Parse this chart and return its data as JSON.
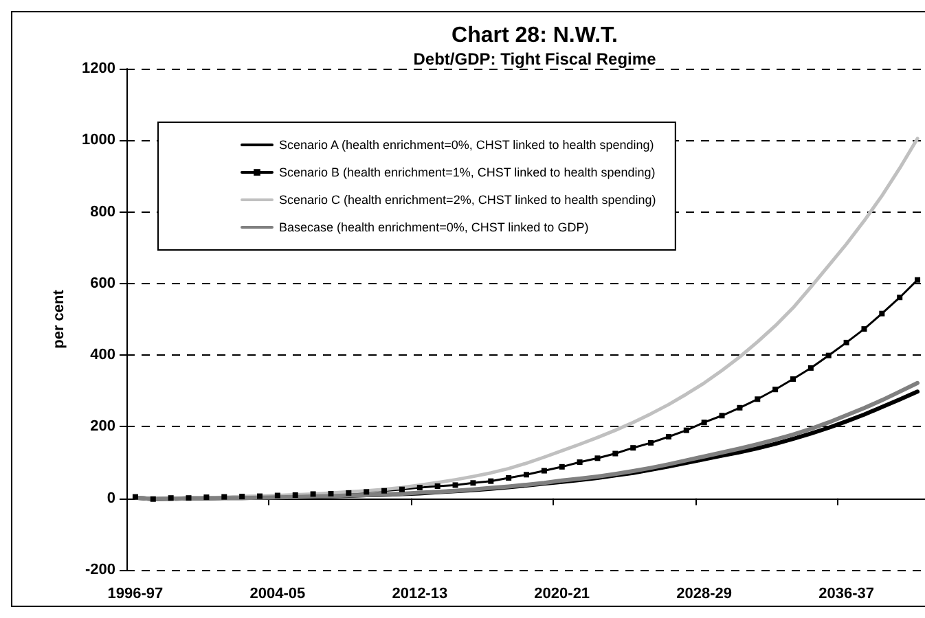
{
  "chart_data": {
    "type": "line",
    "title": "Chart 28: N.W.T.",
    "subtitle": "Debt/GDP: Tight Fiscal Regime",
    "ylabel": "per cent",
    "categories": [
      "1996-97",
      null,
      null,
      null,
      null,
      null,
      null,
      null,
      "2004-05",
      null,
      null,
      null,
      null,
      null,
      null,
      null,
      "2012-13",
      null,
      null,
      null,
      null,
      null,
      null,
      null,
      "2020-21",
      null,
      null,
      null,
      null,
      null,
      null,
      null,
      "2028-29",
      null,
      null,
      null,
      null,
      null,
      null,
      null,
      "2036-37",
      null,
      null,
      null,
      null
    ],
    "series": [
      {
        "name": "Scenario A (health enrichment=0%, CHST linked to health spending)",
        "color": "#000000",
        "marker": "none",
        "values": [
          2,
          -2,
          -1,
          0,
          0,
          1,
          1,
          2,
          3,
          4,
          5,
          6,
          7,
          9,
          10,
          12,
          14,
          17,
          20,
          23,
          27,
          31,
          36,
          41,
          46,
          51,
          57,
          64,
          71,
          80,
          89,
          99,
          109,
          119,
          129,
          140,
          152,
          166,
          181,
          197,
          215,
          234,
          255,
          276,
          298
        ]
      },
      {
        "name": "Scenario B (health enrichment=1%, CHST linked to health spending)",
        "color": "#000000",
        "marker": "square",
        "values": [
          4,
          -2,
          1,
          1,
          3,
          4,
          5,
          6,
          8,
          9,
          12,
          13,
          15,
          18,
          21,
          25,
          30,
          34,
          37,
          43,
          48,
          57,
          66,
          77,
          88,
          101,
          112,
          125,
          141,
          155,
          172,
          190,
          212,
          231,
          253,
          277,
          304,
          333,
          364,
          399,
          435,
          473,
          516,
          561,
          610
        ]
      },
      {
        "name": "Scenario C (health enrichment=2%, CHST linked to health spending)",
        "color": "#c0c0c0",
        "marker": "none",
        "values": [
          3,
          -1,
          0,
          1,
          2,
          3,
          5,
          6,
          8,
          10,
          12,
          15,
          18,
          21,
          25,
          30,
          37,
          44,
          52,
          61,
          71,
          83,
          98,
          115,
          133,
          151,
          170,
          190,
          212,
          236,
          262,
          291,
          322,
          357,
          395,
          437,
          482,
          532,
          590,
          650,
          710,
          775,
          845,
          922,
          1005
        ]
      },
      {
        "name": "Basecase (health enrichment=0%, CHST linked to GDP)",
        "color": "#808080",
        "marker": "none",
        "values": [
          2,
          -2,
          -1,
          0,
          0,
          1,
          1,
          2,
          3,
          4,
          5,
          6,
          8,
          9,
          11,
          13,
          16,
          18,
          21,
          25,
          29,
          33,
          38,
          43,
          50,
          55,
          61,
          68,
          76,
          85,
          95,
          106,
          117,
          128,
          139,
          151,
          164,
          178,
          194,
          212,
          232,
          252,
          274,
          298,
          322
        ]
      }
    ],
    "ylim": [
      -200,
      1200
    ],
    "yticks": [
      -200,
      0,
      200,
      400,
      600,
      800,
      1000,
      1200
    ],
    "grid": "y",
    "legend": "top left",
    "line_style": "solid"
  }
}
